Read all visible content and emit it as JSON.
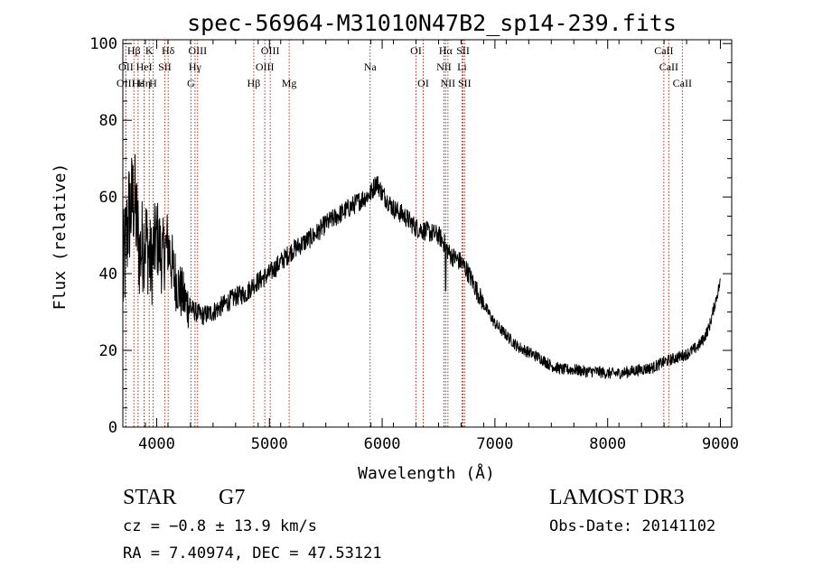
{
  "chart_data": {
    "type": "line",
    "title": "spec-56964-M31010N47B2_sp14-239.fits",
    "xlabel": "Wavelength (Å)",
    "ylabel": "Flux (relative)",
    "xlim": [
      3700,
      9100
    ],
    "ylim": [
      0,
      101
    ],
    "xticks": [
      4000,
      5000,
      6000,
      7000,
      8000,
      9000
    ],
    "xtick_labels": [
      "4000",
      "5000",
      "6000",
      "7000",
      "8000",
      "9000"
    ],
    "yticks": [
      0,
      20,
      40,
      60,
      80,
      100
    ],
    "ytick_labels": [
      "0",
      "20",
      "40",
      "60",
      "80",
      "100"
    ],
    "grid": false,
    "series": [
      {
        "name": "flux",
        "x": [
          3700,
          3750,
          3800,
          3850,
          3900,
          3950,
          4000,
          4050,
          4100,
          4150,
          4200,
          4250,
          4300,
          4350,
          4400,
          4500,
          4600,
          4700,
          4800,
          4850,
          4900,
          5000,
          5100,
          5200,
          5300,
          5400,
          5500,
          5600,
          5700,
          5800,
          5900,
          5950,
          6000,
          6100,
          6200,
          6300,
          6400,
          6500,
          6550,
          6600,
          6650,
          6700,
          6750,
          6800,
          6900,
          7000,
          7100,
          7200,
          7300,
          7400,
          7500,
          7600,
          7700,
          7800,
          7900,
          8000,
          8100,
          8200,
          8300,
          8400,
          8500,
          8600,
          8700,
          8800,
          8850,
          8900,
          8950,
          9000
        ],
        "values": [
          38,
          55,
          60,
          45,
          50,
          42,
          50,
          44,
          48,
          40,
          36,
          33,
          31,
          30,
          29,
          30,
          32,
          34,
          35,
          37,
          38,
          40,
          43,
          46,
          48,
          50,
          53,
          55,
          57,
          59,
          61,
          64,
          61,
          57,
          55,
          52,
          51,
          50,
          48,
          45,
          44,
          43,
          41,
          38,
          32,
          27,
          24,
          21,
          19.5,
          18,
          16,
          15,
          15,
          14.5,
          14.5,
          14,
          14,
          14.5,
          15,
          15.5,
          17,
          18,
          19,
          21,
          23,
          26,
          32,
          38
        ]
      }
    ],
    "spectral_lines": [
      {
        "label": "Hβ",
        "wavelength": 3798,
        "row": 0
      },
      {
        "label": "K",
        "wavelength": 3934,
        "row": 0
      },
      {
        "label": "Hδ",
        "wavelength": 4102,
        "row": 0
      },
      {
        "label": "OIII",
        "wavelength": 4363,
        "row": 0
      },
      {
        "label": "OIII",
        "wavelength": 5007,
        "row": 0
      },
      {
        "label": "OI",
        "wavelength": 6300,
        "row": 0
      },
      {
        "label": "Hα",
        "wavelength": 6563,
        "row": 0
      },
      {
        "label": "SII",
        "wavelength": 6717,
        "row": 0
      },
      {
        "label": "CaII",
        "wavelength": 8498,
        "row": 0
      },
      {
        "label": "OII",
        "wavelength": 3727,
        "row": 1
      },
      {
        "label": "HeI",
        "wavelength": 3889,
        "row": 1
      },
      {
        "label": "SII",
        "wavelength": 4072,
        "row": 1
      },
      {
        "label": "Hγ",
        "wavelength": 4340,
        "row": 1
      },
      {
        "label": "OIII",
        "wavelength": 4959,
        "row": 1
      },
      {
        "label": "Na",
        "wavelength": 5893,
        "row": 1
      },
      {
        "label": "NII",
        "wavelength": 6548,
        "row": 1
      },
      {
        "label": "Li",
        "wavelength": 6708,
        "row": 1
      },
      {
        "label": "CaII",
        "wavelength": 8542,
        "row": 1
      },
      {
        "label": "OIII",
        "wavelength": 3726,
        "row": 2
      },
      {
        "label": "Hε",
        "wavelength": 3835,
        "row": 2
      },
      {
        "label": "Hη",
        "wavelength": 3889,
        "row": 2
      },
      {
        "label": "H",
        "wavelength": 3968,
        "row": 2
      },
      {
        "label": "G",
        "wavelength": 4304,
        "row": 2
      },
      {
        "label": "Hβ",
        "wavelength": 4861,
        "row": 2
      },
      {
        "label": "Mg",
        "wavelength": 5175,
        "row": 2
      },
      {
        "label": "OI",
        "wavelength": 6364,
        "row": 2
      },
      {
        "label": "NII",
        "wavelength": 6583,
        "row": 2
      },
      {
        "label": "SII",
        "wavelength": 6731,
        "row": 2
      },
      {
        "label": "CaII",
        "wavelength": 8662,
        "row": 2
      }
    ]
  },
  "info": {
    "class_label": "STAR",
    "subclass": "G7",
    "survey": "LAMOST DR3",
    "cz": "cz = −0.8 ± 13.9 km/s",
    "obs_date": "Obs-Date: 20141102",
    "coords": "RA =   7.40974, DEC =  47.53121"
  },
  "colors": {
    "line_marker": "#b03020",
    "spectrum": "#000000"
  }
}
